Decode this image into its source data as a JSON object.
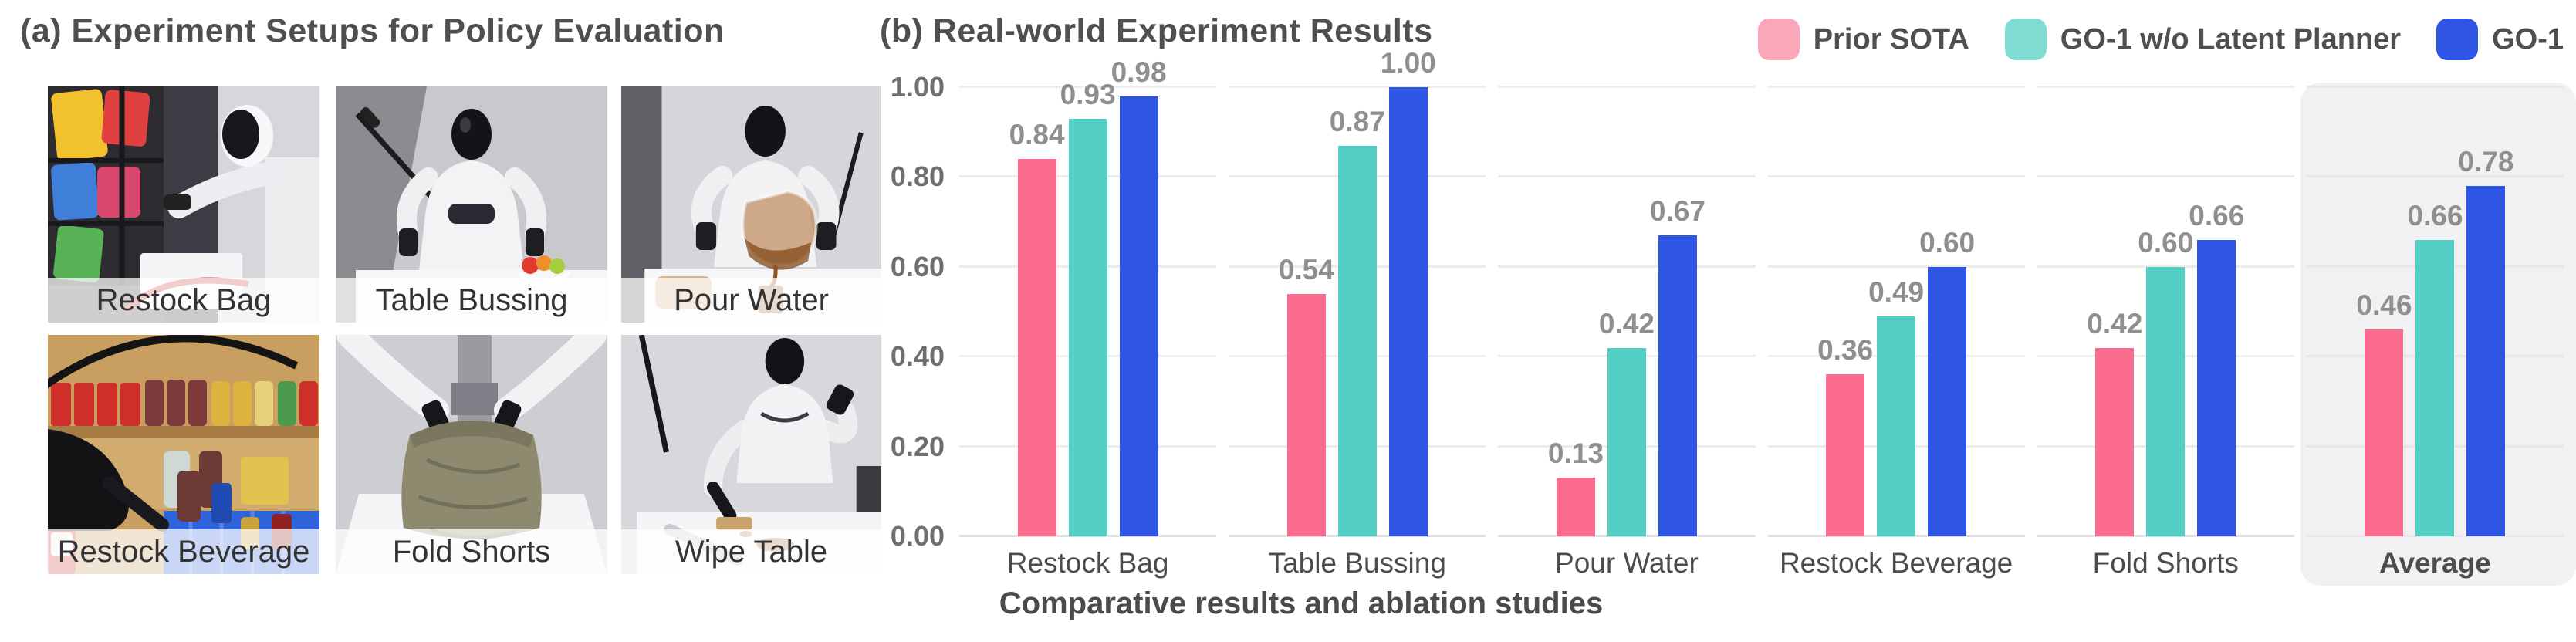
{
  "panel_a": {
    "title": "(a) Experiment Setups for Policy Evaluation",
    "photos": [
      {
        "label": "Restock Bag"
      },
      {
        "label": "Table Bussing"
      },
      {
        "label": "Pour Water"
      },
      {
        "label": "Restock Beverage"
      },
      {
        "label": "Fold Shorts"
      },
      {
        "label": "Wipe Table"
      }
    ]
  },
  "panel_b": {
    "title": "(b) Real-world Experiment Results",
    "caption": "Comparative results and ablation studies",
    "legend": [
      {
        "label": "Prior SOTA",
        "swatch_color": "#FBA7BA",
        "bar_color": "#FB6C8F"
      },
      {
        "label": "GO-1 w/o Latent Planner",
        "swatch_color": "#80DCD3",
        "bar_color": "#55CFC5"
      },
      {
        "label": "GO-1",
        "swatch_color": "#2E55E4",
        "bar_color": "#2E55E4"
      }
    ]
  },
  "chart_data": {
    "type": "bar",
    "title": "(b) Real-world Experiment Results",
    "xlabel": "",
    "ylabel": "",
    "categories": [
      "Restock Bag",
      "Table Bussing",
      "Pour Water",
      "Restock Beverage",
      "Fold Shorts",
      "Average"
    ],
    "highlighted_category": "Average",
    "series": [
      {
        "name": "Prior SOTA",
        "color": "#FB6C8F",
        "values": [
          0.84,
          0.54,
          0.13,
          0.36,
          0.42,
          0.46
        ]
      },
      {
        "name": "GO-1 w/o Latent Planner",
        "color": "#55CFC5",
        "values": [
          0.93,
          0.87,
          0.42,
          0.49,
          0.6,
          0.66
        ]
      },
      {
        "name": "GO-1",
        "color": "#2E55E4",
        "values": [
          0.98,
          1.0,
          0.67,
          0.6,
          0.66,
          0.78
        ]
      }
    ],
    "ylim": [
      0,
      1.0
    ],
    "yticks": [
      "1.00",
      "0.80",
      "0.60",
      "0.40",
      "0.20",
      "0.00"
    ],
    "ytick_values": [
      1.0,
      0.8,
      0.6,
      0.4,
      0.2,
      0.0
    ],
    "grid": true,
    "value_labels": true,
    "legend_position": "top-right",
    "caption": "Comparative results and ablation studies"
  }
}
